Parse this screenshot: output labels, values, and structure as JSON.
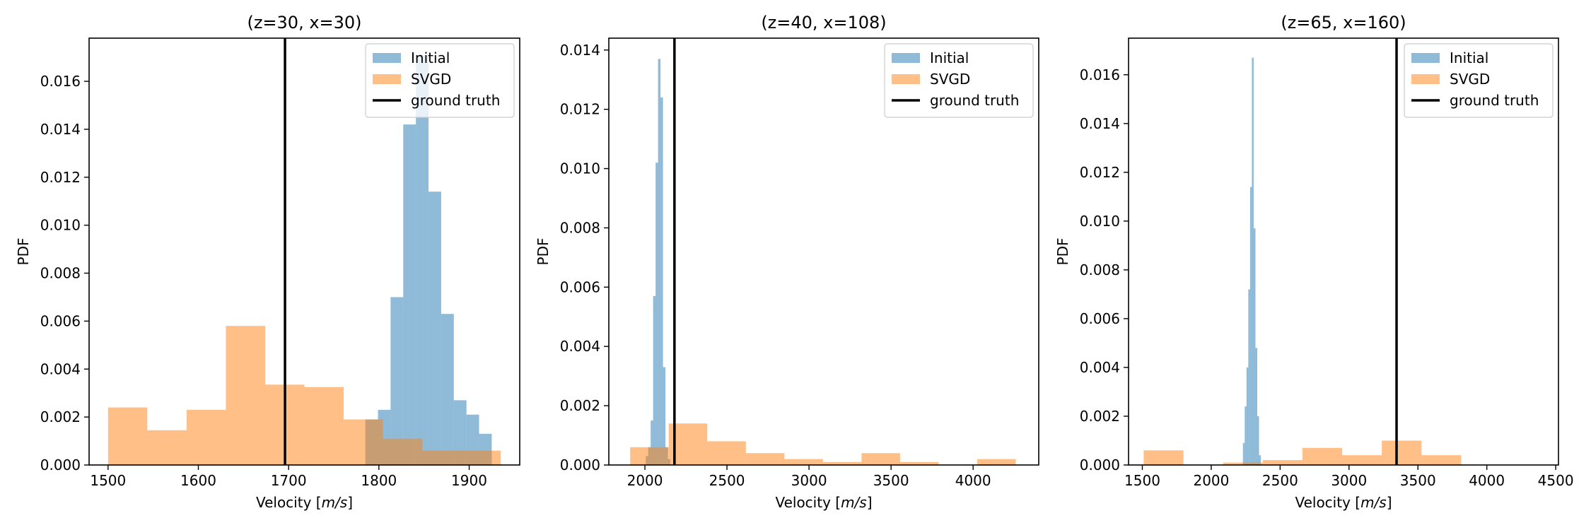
{
  "colors": {
    "initial": "#1f77b4",
    "svgd": "#ff7f0e",
    "ground_truth": "#000000"
  },
  "chart_data": [
    {
      "type": "histogram",
      "title": "(z=30, x=30)",
      "xlabel": "Velocity [m/s]",
      "ylabel": "PDF",
      "xlim": [
        1479,
        1956
      ],
      "ylim": [
        0,
        0.0178
      ],
      "xticks": [
        1500,
        1600,
        1700,
        1800,
        1900
      ],
      "xtick_labels": [
        "1500",
        "1600",
        "1700",
        "1800",
        "1900"
      ],
      "yticks": [
        0,
        0.002,
        0.004,
        0.006,
        0.008,
        0.01,
        0.012,
        0.014,
        0.016
      ],
      "ytick_labels": [
        "0.000",
        "0.002",
        "0.004",
        "0.006",
        "0.008",
        "0.010",
        "0.012",
        "0.014",
        "0.016"
      ],
      "legend": {
        "position": "top-right",
        "entries": [
          "Initial",
          "SVGD",
          "ground truth"
        ]
      },
      "ground_truth": 1696,
      "series": [
        {
          "name": "Initial",
          "bins": [
            [
              1785,
              1799,
              0.0019
            ],
            [
              1799,
              1813,
              0.0023
            ],
            [
              1813,
              1827,
              0.007
            ],
            [
              1827,
              1841,
              0.0142
            ],
            [
              1841,
              1855,
              0.0171
            ],
            [
              1855,
              1869,
              0.0114
            ],
            [
              1869,
              1883,
              0.0063
            ],
            [
              1883,
              1897,
              0.0027
            ],
            [
              1897,
              1911,
              0.0021
            ],
            [
              1911,
              1925,
              0.0013
            ]
          ]
        },
        {
          "name": "SVGD",
          "bins": [
            [
              1500,
              1543.5,
              0.0024
            ],
            [
              1543.5,
              1587,
              0.00145
            ],
            [
              1587,
              1630.5,
              0.0023
            ],
            [
              1630.5,
              1674,
              0.0058
            ],
            [
              1674,
              1717.5,
              0.00335
            ],
            [
              1717.5,
              1761,
              0.00325
            ],
            [
              1761,
              1804.5,
              0.0019
            ],
            [
              1804.5,
              1848,
              0.0011
            ],
            [
              1848,
              1891.5,
              0.0006
            ],
            [
              1891.5,
              1935,
              0.0006
            ]
          ]
        }
      ]
    },
    {
      "type": "histogram",
      "title": "(z=40, x=108)",
      "xlabel": "Velocity [m/s]",
      "ylabel": "PDF",
      "xlim": [
        1780,
        4400
      ],
      "ylim": [
        0,
        0.0144
      ],
      "xticks": [
        2000,
        2500,
        3000,
        3500,
        4000
      ],
      "xtick_labels": [
        "2000",
        "2500",
        "3000",
        "3500",
        "4000"
      ],
      "yticks": [
        0,
        0.002,
        0.004,
        0.006,
        0.008,
        0.01,
        0.012,
        0.014
      ],
      "ytick_labels": [
        "0.000",
        "0.002",
        "0.004",
        "0.006",
        "0.008",
        "0.010",
        "0.012",
        "0.014"
      ],
      "legend": {
        "position": "top-right",
        "entries": [
          "Initial",
          "SVGD",
          "ground truth"
        ]
      },
      "ground_truth": 2180,
      "series": [
        {
          "name": "Initial",
          "bins": [
            [
              2005,
              2020,
              0.0003
            ],
            [
              2020,
              2035,
              0.0006
            ],
            [
              2035,
              2050,
              0.0015
            ],
            [
              2050,
              2065,
              0.0057
            ],
            [
              2065,
              2080,
              0.0102
            ],
            [
              2080,
              2095,
              0.0137
            ],
            [
              2095,
              2110,
              0.0124
            ],
            [
              2110,
              2125,
              0.0033
            ],
            [
              2125,
              2140,
              0.0006
            ],
            [
              2140,
              2155,
              0.0002
            ]
          ]
        },
        {
          "name": "SVGD",
          "bins": [
            [
              1910,
              2145,
              0.0006
            ],
            [
              2145,
              2380,
              0.0014
            ],
            [
              2380,
              2615,
              0.0008
            ],
            [
              2615,
              2850,
              0.0004
            ],
            [
              2850,
              3085,
              0.0002
            ],
            [
              3085,
              3320,
              0.0001
            ],
            [
              3320,
              3555,
              0.0004
            ],
            [
              3555,
              3790,
              0.0001
            ],
            [
              3790,
              4025,
              0.0
            ],
            [
              4025,
              4260,
              0.0002
            ]
          ]
        }
      ]
    },
    {
      "type": "histogram",
      "title": "(z=65, x=160)",
      "xlabel": "Velocity [m/s]",
      "ylabel": "PDF",
      "xlim": [
        1400,
        4520
      ],
      "ylim": [
        0,
        0.0175
      ],
      "xticks": [
        1500,
        2000,
        2500,
        3000,
        3500,
        4000,
        4500
      ],
      "xtick_labels": [
        "1500",
        "2000",
        "2500",
        "3000",
        "3500",
        "4000",
        "4500"
      ],
      "yticks": [
        0,
        0.002,
        0.004,
        0.006,
        0.008,
        0.01,
        0.012,
        0.014,
        0.016
      ],
      "ytick_labels": [
        "0.000",
        "0.002",
        "0.004",
        "0.006",
        "0.008",
        "0.010",
        "0.012",
        "0.014",
        "0.016"
      ],
      "legend": {
        "position": "top-right",
        "entries": [
          "Initial",
          "SVGD",
          "ground truth"
        ]
      },
      "ground_truth": 3345,
      "series": [
        {
          "name": "Initial",
          "bins": [
            [
              2230,
              2243,
              0.0009
            ],
            [
              2243,
              2256,
              0.0024
            ],
            [
              2256,
              2269,
              0.004
            ],
            [
              2269,
              2282,
              0.0072
            ],
            [
              2282,
              2295,
              0.0114
            ],
            [
              2295,
              2308,
              0.0167
            ],
            [
              2308,
              2321,
              0.0097
            ],
            [
              2321,
              2334,
              0.0048
            ],
            [
              2334,
              2347,
              0.002
            ],
            [
              2347,
              2360,
              0.0004
            ]
          ]
        },
        {
          "name": "SVGD",
          "bins": [
            [
              1510,
              1798,
              0.0006
            ],
            [
              1798,
              2086,
              0.0
            ],
            [
              2086,
              2374,
              0.0001
            ],
            [
              2374,
              2662,
              0.0002
            ],
            [
              2662,
              2950,
              0.0007
            ],
            [
              2950,
              3238,
              0.0004
            ],
            [
              3238,
              3526,
              0.001
            ],
            [
              3526,
              3814,
              0.0004
            ],
            [
              3814,
              4102,
              0.0
            ],
            [
              4102,
              4390,
              0.0
            ]
          ]
        }
      ]
    }
  ]
}
